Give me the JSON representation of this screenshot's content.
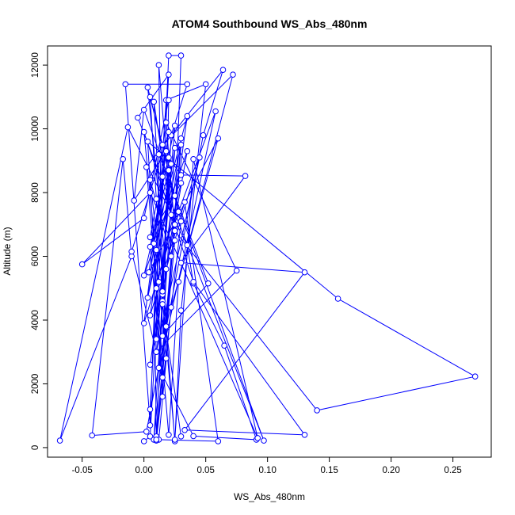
{
  "chart_data": {
    "type": "line",
    "title": "ATOM4 Southbound WS_Abs_480nm",
    "xlabel": "WS_Abs_480nm",
    "ylabel": "Altitude (m)",
    "xlim": [
      -0.078,
      0.281
    ],
    "ylim": [
      -300,
      12600
    ],
    "x_ticks": [
      -0.05,
      0.0,
      0.05,
      0.1,
      0.15,
      0.2,
      0.25
    ],
    "x_tick_labels": [
      "-0.05",
      "0.00",
      "0.05",
      "0.10",
      "0.15",
      "0.20",
      "0.25"
    ],
    "y_ticks": [
      0,
      2000,
      4000,
      6000,
      8000,
      10000,
      12000
    ],
    "y_tick_labels": [
      "0",
      "2000",
      "4000",
      "6000",
      "8000",
      "10000",
      "12000"
    ],
    "grid": false,
    "marker": "open-circle",
    "color": "#0000ff",
    "series": [
      {
        "points": [
          [
            0.0,
            200
          ],
          [
            0.005,
            350
          ],
          [
            0.012,
            5200
          ],
          [
            0.02,
            12300
          ],
          [
            0.03,
            12300
          ],
          [
            0.025,
            7000
          ],
          [
            0.008,
            250
          ],
          [
            0.015,
            4800
          ],
          [
            0.022,
            9800
          ],
          [
            0.035,
            11400
          ],
          [
            -0.015,
            11400
          ],
          [
            0.005,
            700
          ],
          [
            0.01,
            6200
          ],
          [
            0.018,
            10900
          ],
          [
            0.05,
            11400
          ],
          [
            0.03,
            4300
          ],
          [
            0.025,
            200
          ],
          [
            0.01,
            7800
          ],
          [
            0.005,
            11000
          ],
          [
            0.015,
            9500
          ],
          [
            0.072,
            11700
          ],
          [
            0.028,
            5200
          ],
          [
            0.02,
            400
          ],
          [
            0.002,
            8800
          ],
          [
            0.064,
            11850
          ],
          [
            0.048,
            9800
          ],
          [
            0.002,
            500
          ],
          [
            -0.042,
            380
          ],
          [
            -0.017,
            9050
          ],
          [
            -0.01,
            6000
          ],
          [
            -0.068,
            220
          ],
          [
            -0.013,
            10050
          ],
          [
            0.035,
            6350
          ],
          [
            0.04,
            5150
          ],
          [
            0.065,
            3200
          ],
          [
            0.091,
            250
          ],
          [
            0.04,
            360
          ],
          [
            0.012,
            2500
          ],
          [
            0.02,
            9100
          ],
          [
            0.03,
            8550
          ],
          [
            0.082,
            8520
          ],
          [
            0.03,
            5800
          ],
          [
            0.13,
            5500
          ],
          [
            0.033,
            550
          ],
          [
            0.13,
            400
          ],
          [
            0.04,
            5200
          ],
          [
            0.0,
            9900
          ],
          [
            0.018,
            2800
          ],
          [
            0.01,
            350
          ],
          [
            0.008,
            6400
          ],
          [
            0.035,
            10400
          ],
          [
            0.015,
            4600
          ],
          [
            0.025,
            250
          ],
          [
            0.04,
            9050
          ],
          [
            0.092,
            300
          ],
          [
            0.005,
            8000
          ],
          [
            -0.05,
            5750
          ],
          [
            0.0,
            7200
          ],
          [
            0.02,
            10900
          ],
          [
            0.015,
            1600
          ],
          [
            0.003,
            9600
          ],
          [
            0.157,
            4670
          ],
          [
            0.268,
            2230
          ],
          [
            0.14,
            1170
          ],
          [
            0.025,
            6800
          ],
          [
            0.018,
            10200
          ],
          [
            0.075,
            5550
          ],
          [
            0.01,
            3000
          ],
          [
            -0.01,
            6150
          ],
          [
            0.02,
            9900
          ],
          [
            0.0,
            3900
          ],
          [
            0.028,
            7400
          ],
          [
            0.058,
            10550
          ],
          [
            0.005,
            1200
          ],
          [
            0.015,
            8500
          ],
          [
            0.004,
            5500
          ],
          [
            0.06,
            9700
          ],
          [
            0.022,
            4400
          ],
          [
            0.012,
            250
          ],
          [
            0.06,
            200
          ],
          [
            0.033,
            7700
          ],
          [
            0.005,
            4150
          ],
          [
            0.025,
            9400
          ],
          [
            0.015,
            3500
          ],
          [
            0.052,
            5150
          ],
          [
            0.025,
            7900
          ],
          [
            0.0,
            10600
          ],
          [
            -0.008,
            7750
          ],
          [
            0.018,
            9300
          ],
          [
            0.005,
            6600
          ],
          [
            0.03,
            8300
          ],
          [
            0.01,
            5000
          ],
          [
            0.02,
            11700
          ],
          [
            -0.005,
            10350
          ],
          [
            0.097,
            220
          ],
          [
            0.012,
            9200
          ],
          [
            0.01,
            3400
          ],
          [
            0.022,
            8900
          ],
          [
            0.003,
            4700
          ],
          [
            0.03,
            9500
          ],
          [
            0.015,
            2200
          ],
          [
            0.005,
            6300
          ],
          [
            0.025,
            10100
          ],
          [
            0.01,
            3000
          ],
          [
            0.045,
            9100
          ],
          [
            0.018,
            5600
          ],
          [
            0.003,
            11300
          ],
          [
            0.03,
            7100
          ],
          [
            0.01,
            220
          ],
          [
            0.022,
            6000
          ],
          [
            0.005,
            8400
          ],
          [
            0.015,
            4900
          ],
          [
            0.035,
            9300
          ],
          [
            0.0,
            5400
          ],
          [
            0.02,
            8700
          ],
          [
            0.01,
            250
          ],
          [
            0.025,
            6500
          ],
          [
            0.008,
            10850
          ],
          [
            0.018,
            3800
          ],
          [
            0.03,
            9700
          ],
          [
            0.005,
            2600
          ],
          [
            0.022,
            7300
          ],
          [
            0.012,
            12000
          ],
          [
            0.015,
            4500
          ],
          [
            0.03,
            350
          ]
        ]
      }
    ]
  }
}
